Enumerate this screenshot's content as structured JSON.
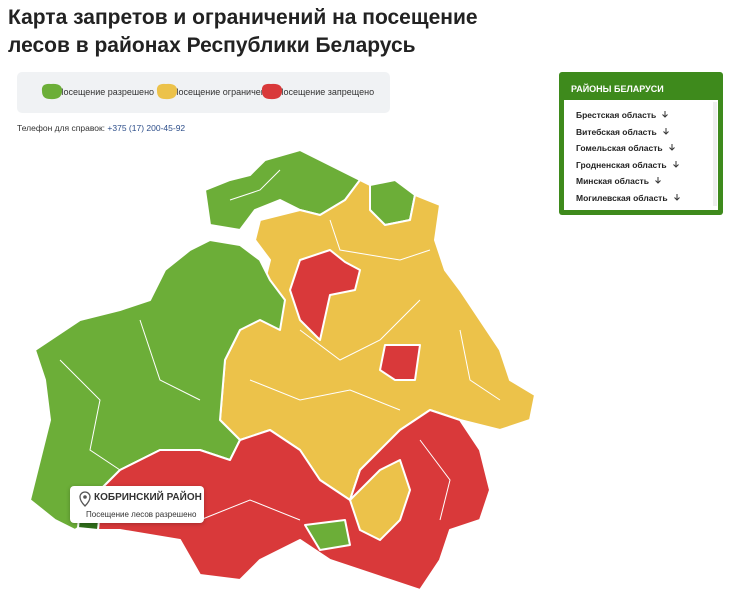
{
  "header": {
    "title": "Карта запретов и ограничений на посещение лесов в районах Республики Беларусь"
  },
  "legend": {
    "items": [
      "Посещение разрешено",
      "Посещение ограничено",
      "Посещение запрещено"
    ]
  },
  "phone": {
    "label": "Телефон для справок:",
    "number": "+375 (17) 200-45-92"
  },
  "panel": {
    "title": "РАЙОНЫ БЕЛАРУСИ",
    "items": [
      "Брестская область",
      "Витебская область",
      "Гомельская область",
      "Гродненская область",
      "Минская область",
      "Могилевская область"
    ]
  },
  "tooltip": {
    "title": "КОБРИНСКИЙ РАЙОН",
    "text": "Посещение лесов разрешено"
  }
}
